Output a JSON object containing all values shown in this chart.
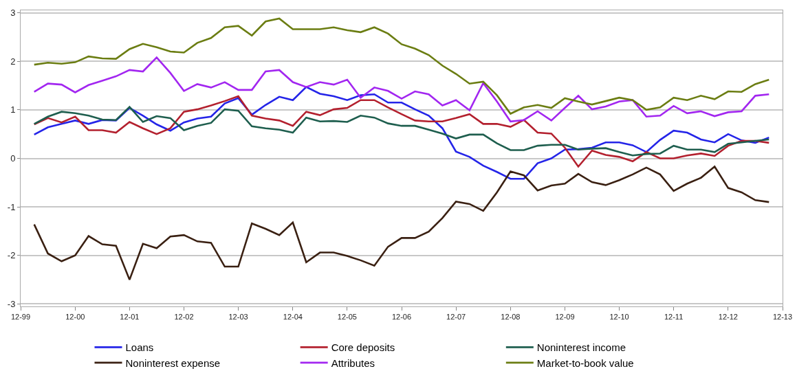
{
  "chart_data": {
    "type": "line",
    "x": [
      "2000-03",
      "2000-06",
      "2000-09",
      "2000-12",
      "2001-03",
      "2001-06",
      "2001-09",
      "2001-12",
      "2002-03",
      "2002-06",
      "2002-09",
      "2002-12",
      "2003-03",
      "2003-06",
      "2003-09",
      "2003-12",
      "2004-03",
      "2004-06",
      "2004-09",
      "2004-12",
      "2005-03",
      "2005-06",
      "2005-09",
      "2005-12",
      "2006-03",
      "2006-06",
      "2006-09",
      "2006-12",
      "2007-03",
      "2007-06",
      "2007-09",
      "2007-12",
      "2008-03",
      "2008-06",
      "2008-09",
      "2008-12",
      "2009-03",
      "2009-06",
      "2009-09",
      "2009-12",
      "2010-03",
      "2010-06",
      "2010-09",
      "2010-12",
      "2011-03",
      "2011-06",
      "2011-09",
      "2011-12",
      "2012-03",
      "2012-06",
      "2012-09",
      "2012-12",
      "2013-03",
      "2013-06",
      "2013-09"
    ],
    "series": [
      {
        "name": "Loans",
        "color": "#2424e8",
        "values": [
          0.49,
          0.64,
          0.71,
          0.78,
          0.71,
          0.79,
          0.78,
          1.04,
          0.88,
          0.7,
          0.57,
          0.74,
          0.82,
          0.86,
          1.13,
          1.24,
          0.9,
          1.1,
          1.27,
          1.2,
          1.47,
          1.33,
          1.28,
          1.2,
          1.3,
          1.32,
          1.15,
          1.15,
          1.01,
          0.88,
          0.62,
          0.14,
          0.03,
          -0.15,
          -0.28,
          -0.42,
          -0.42,
          -0.1,
          0.0,
          0.18,
          0.19,
          0.22,
          0.33,
          0.33,
          0.27,
          0.13,
          0.38,
          0.57,
          0.53,
          0.39,
          0.33,
          0.5,
          0.37,
          0.32,
          0.43
        ]
      },
      {
        "name": "Core deposits",
        "color": "#b3202e",
        "values": [
          0.7,
          0.83,
          0.74,
          0.86,
          0.58,
          0.58,
          0.53,
          0.75,
          0.62,
          0.5,
          0.62,
          0.96,
          1.01,
          1.09,
          1.18,
          1.28,
          0.88,
          0.82,
          0.78,
          0.67,
          0.96,
          0.89,
          1.01,
          1.04,
          1.2,
          1.2,
          1.05,
          0.91,
          0.78,
          0.76,
          0.76,
          0.83,
          0.91,
          0.71,
          0.71,
          0.65,
          0.79,
          0.53,
          0.51,
          0.22,
          -0.17,
          0.16,
          0.07,
          0.03,
          -0.06,
          0.13,
          0.0,
          0.0,
          0.06,
          0.1,
          0.05,
          0.26,
          0.36,
          0.36,
          0.32
        ]
      },
      {
        "name": "Noninterest income",
        "color": "#1e5e4e",
        "values": [
          0.71,
          0.86,
          0.96,
          0.93,
          0.88,
          0.8,
          0.79,
          1.06,
          0.75,
          0.87,
          0.83,
          0.58,
          0.67,
          0.73,
          1.01,
          0.98,
          0.66,
          0.62,
          0.59,
          0.53,
          0.84,
          0.76,
          0.77,
          0.75,
          0.88,
          0.84,
          0.72,
          0.67,
          0.67,
          0.59,
          0.51,
          0.41,
          0.49,
          0.49,
          0.31,
          0.17,
          0.17,
          0.26,
          0.28,
          0.28,
          0.18,
          0.2,
          0.21,
          0.13,
          0.06,
          0.09,
          0.1,
          0.26,
          0.18,
          0.18,
          0.13,
          0.3,
          0.33,
          0.36,
          0.39
        ]
      },
      {
        "name": "Noninterest expense",
        "color": "#3a2012",
        "values": [
          -1.36,
          -1.96,
          -2.12,
          -2.0,
          -1.6,
          -1.77,
          -1.8,
          -2.5,
          -1.76,
          -1.85,
          -1.61,
          -1.58,
          -1.71,
          -1.74,
          -2.23,
          -2.23,
          -1.34,
          -1.45,
          -1.58,
          -1.32,
          -2.14,
          -1.94,
          -1.94,
          -2.01,
          -2.1,
          -2.21,
          -1.82,
          -1.64,
          -1.64,
          -1.51,
          -1.23,
          -0.89,
          -0.94,
          -1.08,
          -0.7,
          -0.27,
          -0.35,
          -0.66,
          -0.56,
          -0.52,
          -0.32,
          -0.49,
          -0.55,
          -0.45,
          -0.33,
          -0.19,
          -0.33,
          -0.67,
          -0.52,
          -0.4,
          -0.17,
          -0.61,
          -0.7,
          -0.86,
          -0.9
        ]
      },
      {
        "name": "Attributes",
        "color": "#a226f0",
        "values": [
          1.37,
          1.54,
          1.52,
          1.36,
          1.51,
          1.6,
          1.69,
          1.82,
          1.79,
          2.08,
          1.76,
          1.39,
          1.53,
          1.46,
          1.57,
          1.41,
          1.41,
          1.79,
          1.82,
          1.57,
          1.47,
          1.57,
          1.52,
          1.62,
          1.25,
          1.46,
          1.39,
          1.23,
          1.38,
          1.32,
          1.09,
          1.2,
          0.99,
          1.55,
          1.17,
          0.76,
          0.79,
          0.97,
          0.78,
          1.04,
          1.29,
          1.01,
          1.07,
          1.17,
          1.2,
          0.86,
          0.88,
          1.08,
          0.93,
          0.97,
          0.87,
          0.95,
          0.97,
          1.29,
          1.32
        ]
      },
      {
        "name": "Market-to-book value",
        "color": "#6b7d12",
        "values": [
          1.93,
          1.97,
          1.95,
          1.98,
          2.1,
          2.06,
          2.05,
          2.25,
          2.36,
          2.29,
          2.2,
          2.18,
          2.38,
          2.48,
          2.7,
          2.73,
          2.53,
          2.82,
          2.88,
          2.66,
          2.66,
          2.66,
          2.7,
          2.64,
          2.6,
          2.7,
          2.57,
          2.35,
          2.26,
          2.13,
          1.91,
          1.74,
          1.54,
          1.58,
          1.3,
          0.92,
          1.05,
          1.1,
          1.04,
          1.24,
          1.17,
          1.11,
          1.18,
          1.25,
          1.2,
          1.0,
          1.05,
          1.25,
          1.2,
          1.29,
          1.22,
          1.38,
          1.37,
          1.53,
          1.62
        ]
      }
    ],
    "xlim": [
      "1999-12",
      "2013-12"
    ],
    "xticks": [
      {
        "value": "1999-12",
        "label": "12-99"
      },
      {
        "value": "2000-12",
        "label": "12-00"
      },
      {
        "value": "2001-12",
        "label": "12-01"
      },
      {
        "value": "2002-12",
        "label": "12-02"
      },
      {
        "value": "2003-12",
        "label": "12-03"
      },
      {
        "value": "2004-12",
        "label": "12-04"
      },
      {
        "value": "2005-12",
        "label": "12-05"
      },
      {
        "value": "2006-12",
        "label": "12-06"
      },
      {
        "value": "2007-12",
        "label": "12-07"
      },
      {
        "value": "2008-12",
        "label": "12-08"
      },
      {
        "value": "2009-12",
        "label": "12-09"
      },
      {
        "value": "2010-12",
        "label": "12-10"
      },
      {
        "value": "2011-12",
        "label": "12-11"
      },
      {
        "value": "2012-12",
        "label": "12-12"
      },
      {
        "value": "2013-12",
        "label": "12-13"
      }
    ],
    "ylim": [
      -3.05,
      3.05
    ],
    "yticks": [
      -3,
      -2,
      -1,
      0,
      1,
      2,
      3
    ],
    "grid": "y",
    "legend": "bottom",
    "marker": "none",
    "line_style": "solid"
  }
}
